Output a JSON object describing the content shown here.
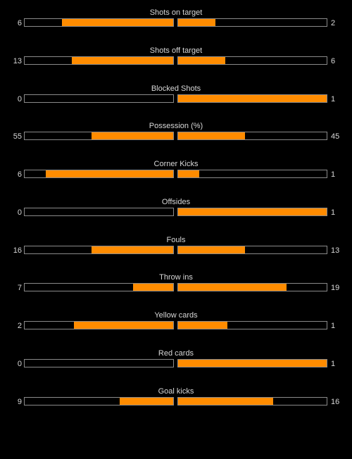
{
  "colors": {
    "background": "#000000",
    "bar_fill": "#ff8c00",
    "bar_border": "#8a8a8a",
    "text": "#d8d8d8"
  },
  "stats": [
    {
      "label": "Shots on target",
      "home": "6",
      "away": "2",
      "home_fraction": 0.75,
      "away_fraction": 0.25
    },
    {
      "label": "Shots off target",
      "home": "13",
      "away": "6",
      "home_fraction": 0.684,
      "away_fraction": 0.316
    },
    {
      "label": "Blocked Shots",
      "home": "0",
      "away": "1",
      "home_fraction": 0,
      "away_fraction": 1
    },
    {
      "label": "Possession (%)",
      "home": "55",
      "away": "45",
      "home_fraction": 0.55,
      "away_fraction": 0.45
    },
    {
      "label": "Corner Kicks",
      "home": "6",
      "away": "1",
      "home_fraction": 0.857,
      "away_fraction": 0.143
    },
    {
      "label": "Offsides",
      "home": "0",
      "away": "1",
      "home_fraction": 0,
      "away_fraction": 1
    },
    {
      "label": "Fouls",
      "home": "16",
      "away": "13",
      "home_fraction": 0.552,
      "away_fraction": 0.448
    },
    {
      "label": "Throw ins",
      "home": "7",
      "away": "19",
      "home_fraction": 0.269,
      "away_fraction": 0.731
    },
    {
      "label": "Yellow cards",
      "home": "2",
      "away": "1",
      "home_fraction": 0.667,
      "away_fraction": 0.333
    },
    {
      "label": "Red cards",
      "home": "0",
      "away": "1",
      "home_fraction": 0,
      "away_fraction": 1
    },
    {
      "label": "Goal kicks",
      "home": "9",
      "away": "16",
      "home_fraction": 0.36,
      "away_fraction": 0.64
    }
  ]
}
